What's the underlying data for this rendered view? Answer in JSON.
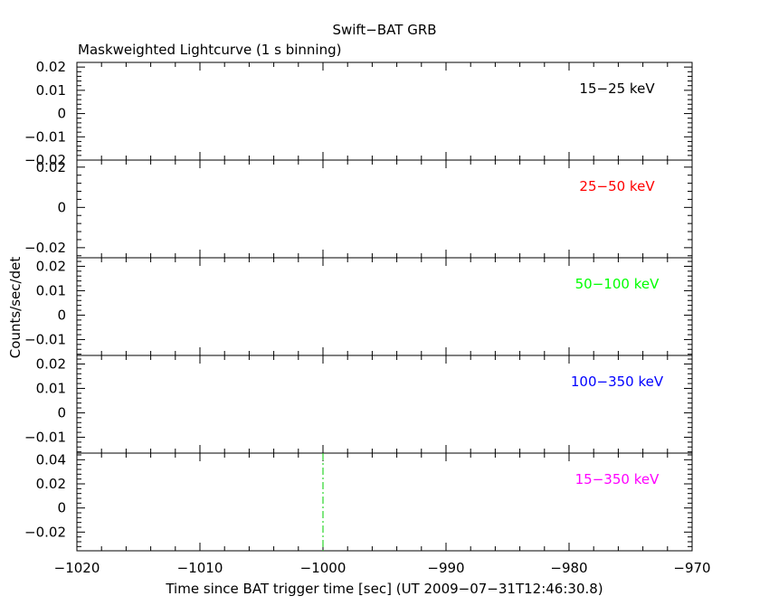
{
  "chart_data": {
    "type": "line",
    "title": "Swift−BAT GRB",
    "subtitle": "Maskweighted Lightcurve (1 s binning)",
    "xlabel": "Time since BAT trigger time [sec] (UT 2009−07−31T12:46:30.8)",
    "ylabel": "Counts/sec/det",
    "xlim": [
      -1020,
      -970
    ],
    "x_ticks": [
      -1020,
      -1010,
      -1000,
      -990,
      -980,
      -970
    ],
    "x_tick_labels": [
      "−1020",
      "−1010",
      "−1000",
      "−990",
      "−980",
      "−970"
    ],
    "marker_line": {
      "x": -1000,
      "color": "#00cc00",
      "style": "dash-dot"
    },
    "panels": [
      {
        "band": "15−25 keV",
        "color": "#000000",
        "ylim": [
          -0.02,
          0.022
        ],
        "ticks": [
          -0.02,
          -0.01,
          0,
          0.01,
          0.02
        ],
        "tick_labels": [
          "−0.02",
          "−0.01",
          "0",
          "0.01",
          "0.02"
        ]
      },
      {
        "band": "25−50 keV",
        "color": "#ff0000",
        "ylim": [
          -0.025,
          0.0235
        ],
        "ticks": [
          -0.02,
          0,
          0.02
        ],
        "tick_labels": [
          "−0.02",
          "0",
          "0.02"
        ]
      },
      {
        "band": "50−100 keV",
        "color": "#00ff00",
        "ylim": [
          -0.0165,
          0.0235
        ],
        "ticks": [
          -0.01,
          0,
          0.01,
          0.02
        ],
        "tick_labels": [
          "−0.01",
          "0",
          "0.01",
          "0.02"
        ]
      },
      {
        "band": "100−350 keV",
        "color": "#0000ff",
        "ylim": [
          -0.0165,
          0.0235
        ],
        "ticks": [
          -0.01,
          0,
          0.01,
          0.02
        ],
        "tick_labels": [
          "−0.01",
          "0",
          "0.01",
          "0.02"
        ]
      },
      {
        "band": "15−350 keV",
        "color": "#ff00ff",
        "ylim": [
          -0.0355,
          0.0455
        ],
        "ticks": [
          -0.02,
          0,
          0.02,
          0.04
        ],
        "tick_labels": [
          "−0.02",
          "0",
          "0.02",
          "0.04"
        ]
      }
    ]
  }
}
